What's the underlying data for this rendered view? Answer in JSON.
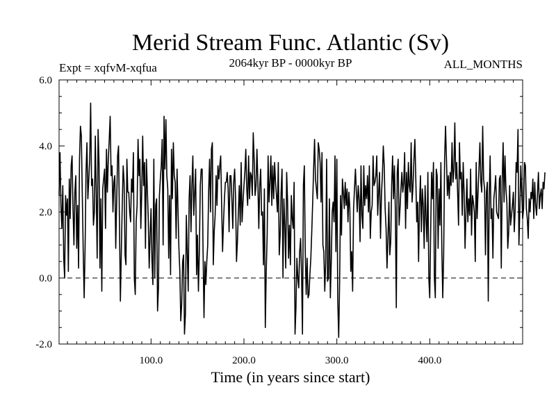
{
  "chart_data": {
    "type": "line",
    "title": "Merid Stream Func. Atlantic (Sv)",
    "subtitle_left": "Expt = xqfvM-xqfua",
    "subtitle_center": "2064kyr BP - 0000kyr BP",
    "subtitle_right": "ALL_MONTHS",
    "xlabel": "Time (in years since start)",
    "ylabel": "",
    "xlim": [
      1,
      500
    ],
    "ylim": [
      -2.0,
      6.0
    ],
    "xticks": [
      {
        "value": 100,
        "label": "100.0"
      },
      {
        "value": 200,
        "label": "200.0"
      },
      {
        "value": 300,
        "label": "300.0"
      },
      {
        "value": 400,
        "label": "400.0"
      }
    ],
    "yticks": [
      {
        "value": 6,
        "label": "6.0"
      },
      {
        "value": 4,
        "label": "4.0"
      },
      {
        "value": 2,
        "label": "2.0"
      },
      {
        "value": 0,
        "label": "0.0"
      },
      {
        "value": -2,
        "label": "-2.0"
      }
    ],
    "reference_line": {
      "y": 0.0,
      "style": "dashed"
    },
    "series": [
      {
        "name": "Merid Stream Func. Atlantic",
        "x_start": 1,
        "x_step": 1,
        "values": [
          2.5,
          3.8,
          2.2,
          1.5,
          2.8,
          0.6,
          0.0,
          2.5,
          1.9,
          2.4,
          0.2,
          3.0,
          1.8,
          3.4,
          3.7,
          2.1,
          1.0,
          2.6,
          3.1,
          0.9,
          2.2,
          0.3,
          3.6,
          4.6,
          4.3,
          2.5,
          0.8,
          -0.6,
          0.9,
          3.2,
          4.1,
          2.4,
          3.0,
          3.6,
          5.3,
          2.8,
          3.0,
          1.6,
          2.0,
          4.3,
          2.6,
          0.6,
          4.5,
          3.5,
          0.3,
          2.4,
          -0.4,
          2.7,
          3.0,
          3.3,
          1.5,
          3.9,
          2.6,
          3.6,
          4.2,
          4.9,
          3.1,
          3.4,
          2.0,
          2.9,
          3.1,
          0.9,
          2.3,
          3.7,
          4.0,
          1.7,
          -0.7,
          0.8,
          2.2,
          3.4,
          2.9,
          0.7,
          0.4,
          3.6,
          2.6,
          2.6,
          2.0,
          1.7,
          3.0,
          2.6,
          3.8,
          0.0,
          -0.5,
          1.7,
          2.2,
          4.2,
          3.1,
          3.6,
          1.5,
          2.6,
          4.3,
          2.8,
          3.5,
          0.9,
          3.6,
          2.7,
          1.8,
          0.3,
          1.3,
          2.1,
          0.5,
          -0.2,
          3.6,
          0.0,
          2.2,
          2.4,
          -1.0,
          -0.3,
          2.5,
          3.0,
          3.4,
          4.2,
          1.0,
          4.9,
          3.3,
          4.8,
          3.1,
          2.7,
          0.6,
          2.5,
          0.1,
          3.9,
          2.4,
          4.1,
          3.1,
          2.9,
          1.2,
          3.3,
          2.1,
          0.9,
          0.2,
          -1.3,
          -0.8,
          0.5,
          0.7,
          -1.7,
          -1.1,
          1.9,
          0.8,
          -0.4,
          2.4,
          3.1,
          1.4,
          2.8,
          3.7,
          1.9,
          2.6,
          3.3,
          0.1,
          1.3,
          -0.4,
          0.8,
          2.8,
          3.3,
          3.3,
          0.8,
          -1.2,
          0.5,
          -0.2,
          0.5,
          1.0,
          2.6,
          3.6,
          2.0,
          3.9,
          4.1,
          0.4,
          1.4,
          1.9,
          3.1,
          2.2,
          3.4,
          3.0,
          3.4,
          3.7,
          2.2,
          0.8,
          1.7,
          2.4,
          2.9,
          2.9,
          3.2,
          2.7,
          1.4,
          3.1,
          3.1,
          2.4,
          1.5,
          2.9,
          3.3,
          2.4,
          0.5,
          1.1,
          2.0,
          2.8,
          1.6,
          3.5,
          1.7,
          2.3,
          2.8,
          3.2,
          3.9,
          2.7,
          2.2,
          3.7,
          2.4,
          3.2,
          3.1,
          2.5,
          4.4,
          3.6,
          2.5,
          2.8,
          3.9,
          2.9,
          1.5,
          2.8,
          3.3,
          1.9,
          2.0,
          0.4,
          2.7,
          -1.5,
          0.2,
          1.3,
          3.7,
          2.3,
          2.9,
          3.7,
          2.2,
          3.4,
          2.4,
          3.5,
          2.9,
          2.5,
          2.0,
          3.5,
          0.7,
          1.3,
          2.6,
          3.3,
          0.0,
          2.4,
          1.6,
          0.3,
          3.2,
          2.3,
          0.6,
          1.6,
          0.4,
          2.5,
          1.8,
          1.5,
          2.9,
          -1.7,
          -0.9,
          0.6,
          0.0,
          -0.3,
          0.8,
          1.2,
          0.2,
          -1.7,
          2.8,
          3.4,
          0.8,
          -0.5,
          0.6,
          -0.6,
          -0.5,
          0.1,
          0.6,
          1.4,
          2.3,
          3.3,
          4.2,
          3.0,
          2.7,
          2.4,
          4.1,
          3.9,
          3.5,
          2.3,
          3.8,
          1.0,
          0.8,
          -0.4,
          0.5,
          3.6,
          -0.1,
          0.0,
          2.4,
          -0.6,
          0.5,
          2.0,
          2.3,
          1.7,
          3.7,
          0.8,
          3.6,
          -0.7,
          -1.8,
          -0.1,
          2.5,
          1.3,
          3.0,
          2.6,
          2.1,
          2.9,
          2.2,
          2.7,
          1.7,
          2.6,
          2.1,
          0.2,
          0.8,
          -0.4,
          2.1,
          2.7,
          3.3,
          2.6,
          2.0,
          2.8,
          2.4,
          1.1,
          3.4,
          1.9,
          1.5,
          3.4,
          2.2,
          2.8,
          2.4,
          3.1,
          2.0,
          3.4,
          1.2,
          2.0,
          2.2,
          3.7,
          2.8,
          2.9,
          3.1,
          3.7,
          1.9,
          2.6,
          3.2,
          1.2,
          2.5,
          3.1,
          4.0,
          3.4,
          2.1,
          1.5,
          0.3,
          1.2,
          2.3,
          0.7,
          1.1,
          2.8,
          3.7,
          2.4,
          3.4,
          2.0,
          -0.9,
          3.2,
          3.6,
          1.6,
          2.1,
          2.7,
          3.2,
          2.6,
          2.9,
          3.8,
          1.5,
          3.2,
          2.1,
          3.5,
          2.8,
          2.6,
          4.1,
          2.3,
          2.8,
          3.6,
          4.2,
          3.0,
          1.7,
          2.3,
          0.5,
          2.2,
          3.1,
          1.4,
          2.7,
          2.2,
          0.9,
          2.8,
          1.8,
          1.1,
          3.2,
          0.0,
          -0.6,
          1.4,
          3.2,
          2.4,
          3.5,
          0.0,
          -0.6,
          3.3,
          3.1,
          0.9,
          2.7,
          1.6,
          3.5,
          0.9,
          -0.6,
          0.7,
          3.6,
          4.6,
          3.6,
          2.5,
          3.1,
          2.4,
          3.2,
          2.8,
          4.1,
          2.9,
          3.3,
          4.7,
          3.0,
          3.5,
          2.6,
          1.6,
          4.1,
          3.0,
          3.2,
          1.9,
          3.5,
          2.6,
          0.9,
          2.0,
          3.0,
          1.7,
          2.4,
          1.9,
          3.3,
          1.3,
          2.5,
          2.3,
          2.0,
          0.5,
          3.5,
          1.8,
          2.6,
          3.3,
          4.1,
          2.9,
          2.6,
          4.6,
          3.0,
          2.7,
          0.7,
          2.6,
          2.9,
          -0.7,
          2.4,
          3.7,
          1.8,
          2.1,
          0.6,
          2.4,
          2.7,
          3.1,
          2.0,
          1.9,
          1.8,
          3.0,
          3.1,
          0.3,
          2.9,
          4.1,
          2.3,
          3.7,
          2.7,
          2.3,
          0.9,
          1.4,
          2.8,
          1.6,
          1.9,
          2.2,
          2.6,
          1.4,
          2.1,
          3.5,
          3.2,
          4.5,
          1.0,
          2.1,
          3.4,
          2.6,
          1.8,
          2.1,
          3.5,
          3.4,
          2.1,
          1.8,
          1.2,
          2.4,
          2.0,
          2.6,
          2.4,
          3.0,
          1.8,
          2.9,
          2.2,
          1.9,
          2.6,
          3.2,
          2.1,
          2.5,
          2.7,
          2.1,
          2.9,
          2.7,
          3.2
        ]
      }
    ]
  }
}
